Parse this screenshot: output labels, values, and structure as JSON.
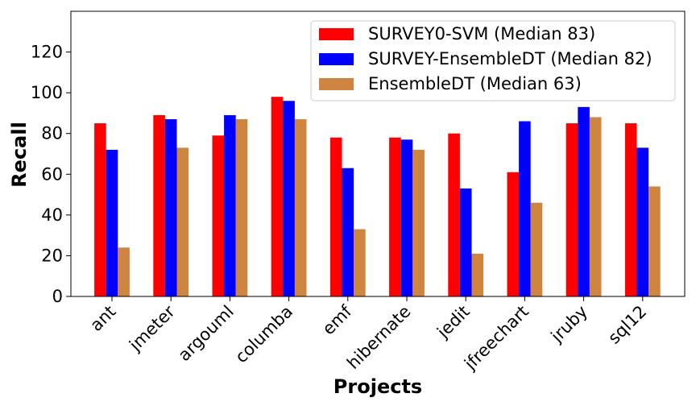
{
  "chart_data": {
    "type": "bar",
    "title": "",
    "xlabel": "Projects",
    "ylabel": "Recall",
    "ylim": [
      0,
      140
    ],
    "yticks": [
      0,
      20,
      40,
      60,
      80,
      100,
      120
    ],
    "categories": [
      "ant",
      "jmeter",
      "argouml",
      "columba",
      "emf",
      "hibernate",
      "jedit",
      "jfreechart",
      "jruby",
      "sql12"
    ],
    "series": [
      {
        "name": "SURVEY0-SVM (Median 83)",
        "color": "#ff0000",
        "values": [
          85,
          89,
          79,
          98,
          78,
          78,
          80,
          61,
          85,
          85
        ]
      },
      {
        "name": "SURVEY-EnsembleDT (Median 82)",
        "color": "#0000ff",
        "values": [
          72,
          87,
          89,
          96,
          63,
          77,
          53,
          86,
          93,
          73
        ]
      },
      {
        "name": "EnsembleDT (Median 63)",
        "color": "#cd853f",
        "values": [
          24,
          73,
          87,
          87,
          33,
          72,
          21,
          46,
          88,
          54
        ]
      }
    ],
    "legend_position": "top-right",
    "grid": false
  }
}
